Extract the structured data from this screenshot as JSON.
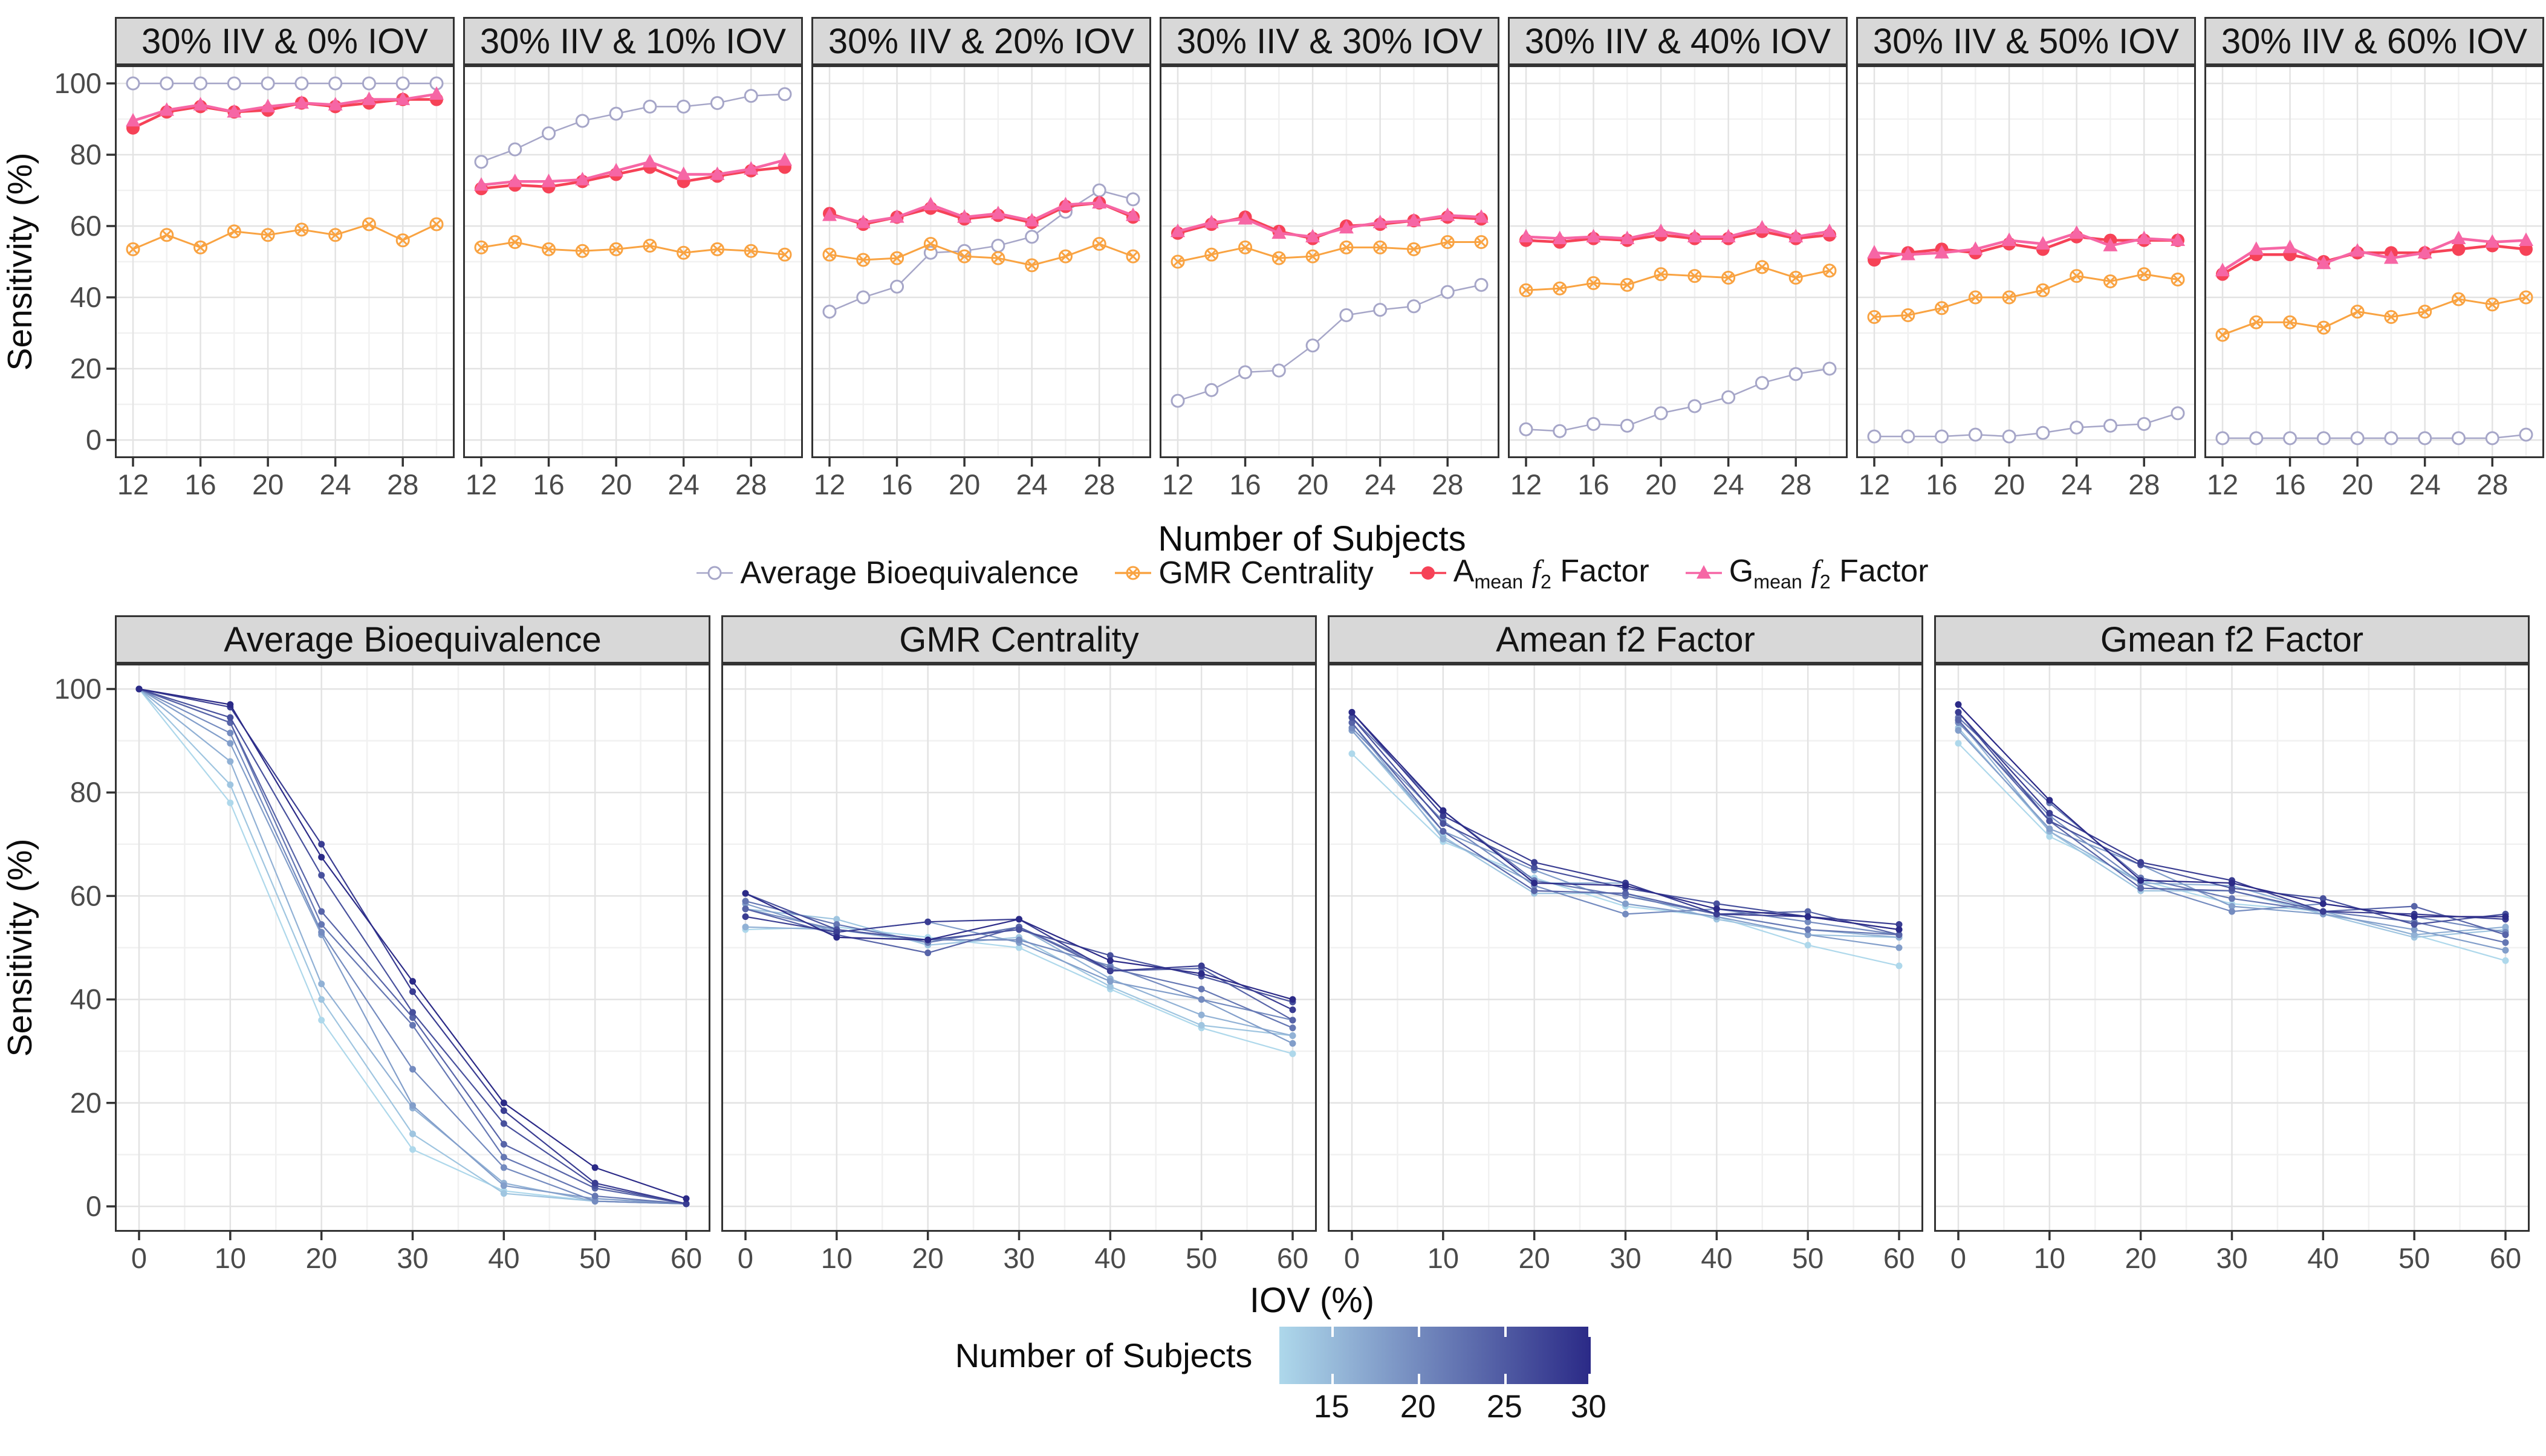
{
  "chart_data": {
    "type": "line",
    "ylabel": "Sensitivity (%)",
    "top_row": {
      "xlabel": "Number of Subjects",
      "facet_titles": [
        "30% IIV & 0% IOV",
        "30% IIV & 10% IOV",
        "30% IIV & 20% IOV",
        "30% IIV & 30% IOV",
        "30% IIV & 40% IOV",
        "30% IIV & 50% IOV",
        "30% IIV & 60% IOV"
      ],
      "x_ticks": [
        12,
        16,
        20,
        24,
        28
      ],
      "y_ticks": [
        0,
        20,
        40,
        60,
        80,
        100
      ],
      "ylim": [
        0,
        100
      ],
      "xlim": [
        12,
        30
      ]
    },
    "bottom_row": {
      "xlabel": "IOV (%)",
      "facet_titles": [
        "Average Bioequivalence",
        "GMR Centrality",
        "Amean f2 Factor",
        "Gmean f2 Factor"
      ],
      "x_ticks": [
        0,
        10,
        20,
        30,
        40,
        50,
        60
      ],
      "y_ticks": [
        0,
        20,
        40,
        60,
        80,
        100
      ],
      "ylim": [
        0,
        100
      ],
      "xlim": [
        0,
        60
      ]
    },
    "methods": [
      {
        "id": "avg_be",
        "label": "Average Bioequivalence",
        "color": "#a6a6c8",
        "marker": "open-circle"
      },
      {
        "id": "gmr",
        "label": "GMR Centrality",
        "color": "#f9a342",
        "marker": "circle-cross"
      },
      {
        "id": "amean",
        "label": "Amean f2 Factor",
        "legend_parts": {
          "base": "A",
          "base_sub": "mean",
          "f": "f",
          "f_sub": "2",
          "tail": " Factor"
        },
        "color": "#f64257",
        "marker": "filled-circle"
      },
      {
        "id": "gmean",
        "label": "Gmean f2 Factor",
        "legend_parts": {
          "base": "G",
          "base_sub": "mean",
          "f": "f",
          "f_sub": "2",
          "tail": " Factor"
        },
        "color": "#f666a5",
        "marker": "triangle"
      }
    ],
    "iov_levels": [
      0,
      10,
      20,
      30,
      40,
      50,
      60
    ],
    "n_subjects": [
      12,
      14,
      16,
      18,
      20,
      22,
      24,
      26,
      28,
      30
    ],
    "sensitivity": {
      "avg_be": [
        [
          100,
          100,
          100,
          100,
          100,
          100,
          100,
          100,
          100,
          100
        ],
        [
          78,
          81.5,
          86,
          89.5,
          91.5,
          93.5,
          93.5,
          94.5,
          96.5,
          97
        ],
        [
          36,
          40,
          43,
          52.5,
          53,
          54.5,
          57,
          64,
          70,
          67.5
        ],
        [
          11,
          14,
          19,
          19.5,
          26.5,
          35,
          36.5,
          37.5,
          41.5,
          43.5
        ],
        [
          3,
          2.5,
          4.5,
          4,
          7.5,
          9.5,
          12,
          16,
          18.5,
          20
        ],
        [
          1,
          1,
          1,
          1.5,
          1,
          2,
          3.5,
          4,
          4.5,
          7.5
        ],
        [
          0.5,
          0.5,
          0.5,
          0.5,
          0.5,
          0.5,
          0.5,
          0.5,
          0.5,
          1.5
        ]
      ],
      "gmr": [
        [
          53.5,
          57.5,
          54,
          58.5,
          57.5,
          59,
          57.5,
          60.5,
          56,
          60.5
        ],
        [
          54,
          55.5,
          53.5,
          53,
          53.5,
          54.5,
          52.5,
          53.5,
          53,
          52
        ],
        [
          52,
          50.5,
          51,
          55,
          51.5,
          51,
          49,
          51.5,
          55,
          51.5
        ],
        [
          50,
          52,
          54,
          51,
          51.5,
          54,
          54,
          53.5,
          55.5,
          55.5
        ],
        [
          42,
          42.5,
          44,
          43.5,
          46.5,
          46,
          45.5,
          48.5,
          45.5,
          47.5
        ],
        [
          34.5,
          35,
          37,
          40,
          40,
          42,
          46,
          44.5,
          46.5,
          45
        ],
        [
          29.5,
          33,
          33,
          31.5,
          36,
          34.5,
          36,
          39.5,
          38,
          40
        ]
      ],
      "amean": [
        [
          87.5,
          92,
          93.5,
          92,
          92.5,
          94.5,
          93.5,
          94.5,
          95.5,
          95.5
        ],
        [
          70.5,
          71.5,
          71,
          72.5,
          74.5,
          76.5,
          72.5,
          74,
          75.5,
          76.5
        ],
        [
          63.5,
          60.5,
          62.5,
          65,
          62,
          63,
          61,
          65.5,
          66.5,
          62.5
        ],
        [
          58,
          60.5,
          62.5,
          58.5,
          56.5,
          60,
          60.5,
          61.5,
          62.5,
          62
        ],
        [
          56,
          55.5,
          56.5,
          56,
          57.5,
          56.5,
          56.5,
          58.5,
          56.5,
          57.5
        ],
        [
          50.5,
          52.5,
          53.5,
          52.5,
          55,
          53.5,
          57,
          56,
          56,
          56
        ],
        [
          46.5,
          52,
          52,
          50,
          52.5,
          52.5,
          52.5,
          53.5,
          54.5,
          53.5
        ]
      ],
      "gmean": [
        [
          89.5,
          92.5,
          94,
          92,
          93.5,
          94.5,
          94,
          95.5,
          95.5,
          97
        ],
        [
          71.5,
          72.5,
          72.5,
          73,
          75.5,
          78,
          74.5,
          74.5,
          76,
          78.5
        ],
        [
          63,
          61,
          62.5,
          66,
          62.5,
          63.5,
          61.5,
          66,
          66.5,
          63
        ],
        [
          58.5,
          61,
          62,
          58,
          57,
          59.5,
          61,
          61.5,
          63,
          62.5
        ],
        [
          57,
          56.5,
          57,
          56.5,
          58.5,
          57,
          57,
          59.5,
          57,
          58.5
        ],
        [
          52.5,
          52,
          52.5,
          53.5,
          56,
          55,
          58,
          54.5,
          56.5,
          56
        ],
        [
          47.5,
          53.5,
          54,
          49.5,
          53,
          51,
          52.5,
          56.5,
          55.5,
          56
        ]
      ]
    },
    "color_scale": {
      "label": "Number of Subjects",
      "ticks": [
        15,
        20,
        25,
        30
      ],
      "domain": [
        12,
        30
      ],
      "from": "#aed8eb",
      "to": "#2b2a87"
    },
    "style": {
      "grid_major": "#e3e3e3",
      "grid_minor": "#f1f1f1",
      "panel_border": "#333333",
      "strip_bg": "#d8d8d8",
      "tick_text": "#4a4a4a"
    }
  }
}
